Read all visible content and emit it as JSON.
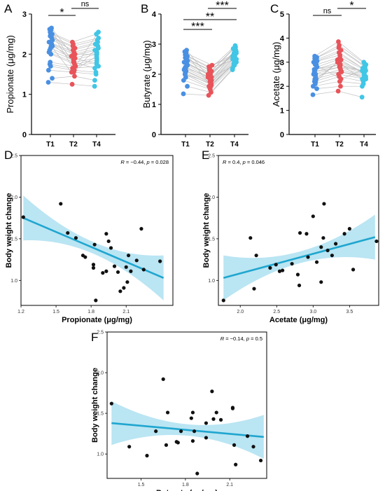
{
  "colors": {
    "t1": "#4a90e2",
    "t2": "#e8545a",
    "t4": "#41c6e6",
    "pair_line": "#b8b8b8",
    "fit_line": "#1fa6cf",
    "ci_band": "#b6e4f2",
    "point": "#111111"
  },
  "chart_data": [
    {
      "panel": "A",
      "type": "scatter",
      "ylabel": "Propionate (μg/mg)",
      "categories": [
        "T1",
        "T2",
        "T4"
      ],
      "ylim": [
        0,
        3
      ],
      "yticks": [
        "0",
        "1",
        "2",
        "3"
      ],
      "series": [
        {
          "values": [
            1.3,
            1.4,
            1.6,
            1.7,
            1.75,
            1.8,
            2.0,
            2.05,
            2.1,
            2.15,
            2.2,
            2.25,
            2.3,
            2.35,
            2.4,
            2.45,
            2.5,
            2.55,
            2.6,
            2.62,
            2.65,
            2.5,
            2.2,
            2.3
          ]
        },
        {
          "values": [
            1.25,
            1.45,
            1.55,
            1.6,
            1.65,
            1.7,
            1.75,
            1.8,
            1.85,
            1.9,
            1.95,
            2.0,
            2.05,
            2.1,
            2.15,
            2.2,
            2.25,
            2.3,
            1.7,
            1.6,
            1.9,
            2.0,
            1.55,
            1.8
          ]
        },
        {
          "values": [
            1.2,
            1.35,
            1.5,
            1.55,
            1.7,
            1.8,
            1.85,
            1.9,
            2.0,
            2.05,
            2.1,
            2.15,
            2.2,
            2.25,
            2.3,
            2.35,
            2.4,
            2.5,
            2.55,
            1.95,
            1.75,
            2.0,
            2.1,
            1.65
          ]
        }
      ],
      "comparisons": [
        {
          "from": "T1",
          "to": "T2",
          "label": "*"
        },
        {
          "from": "T2",
          "to": "T4",
          "label": "ns"
        }
      ]
    },
    {
      "panel": "B",
      "type": "scatter",
      "ylabel": "Butyrate (μg/mg)",
      "categories": [
        "T1",
        "T2",
        "T4"
      ],
      "ylim": [
        0,
        4
      ],
      "yticks": [
        "0",
        "1",
        "2",
        "3",
        "4"
      ],
      "series": [
        {
          "values": [
            1.35,
            1.6,
            1.8,
            1.9,
            2.0,
            2.05,
            2.1,
            2.15,
            2.2,
            2.25,
            2.3,
            2.35,
            2.4,
            2.45,
            2.5,
            2.55,
            2.6,
            2.65,
            2.7,
            2.75,
            2.8,
            2.2,
            2.4,
            2.0
          ]
        },
        {
          "values": [
            1.3,
            1.4,
            1.5,
            1.55,
            1.6,
            1.65,
            1.7,
            1.75,
            1.8,
            1.85,
            1.9,
            1.95,
            2.0,
            2.05,
            2.1,
            2.15,
            2.2,
            2.25,
            2.3,
            1.6,
            1.8,
            1.9,
            2.0,
            1.7
          ]
        },
        {
          "values": [
            2.15,
            2.2,
            2.3,
            2.35,
            2.4,
            2.45,
            2.5,
            2.55,
            2.6,
            2.65,
            2.7,
            2.75,
            2.8,
            2.85,
            2.9,
            2.95,
            2.5,
            2.6,
            2.7,
            2.4,
            2.8,
            2.3,
            2.6,
            2.5
          ]
        }
      ],
      "comparisons": [
        {
          "from": "T1",
          "to": "T2",
          "label": "***"
        },
        {
          "from": "T1",
          "to": "T4",
          "label": "**"
        },
        {
          "from": "T2",
          "to": "T4",
          "label": "***"
        }
      ]
    },
    {
      "panel": "C",
      "type": "scatter",
      "ylabel": "Acetate (μg/mg)",
      "categories": [
        "T1",
        "T2",
        "T4"
      ],
      "ylim": [
        0,
        5
      ],
      "yticks": [
        "0",
        "1",
        "2",
        "3",
        "4",
        "5"
      ],
      "series": [
        {
          "values": [
            1.65,
            1.9,
            2.0,
            2.1,
            2.2,
            2.3,
            2.4,
            2.5,
            2.6,
            2.7,
            2.8,
            2.9,
            3.0,
            3.05,
            3.1,
            3.15,
            3.2,
            3.25,
            2.5,
            2.7,
            2.3,
            2.9,
            2.2,
            2.6
          ]
        },
        {
          "values": [
            1.8,
            2.0,
            2.2,
            2.4,
            2.5,
            2.6,
            2.7,
            2.8,
            2.9,
            3.0,
            3.1,
            3.2,
            3.3,
            3.4,
            3.5,
            3.6,
            3.7,
            3.85,
            2.6,
            2.9,
            3.1,
            2.3,
            3.0,
            2.8
          ]
        },
        {
          "values": [
            1.55,
            2.0,
            2.1,
            2.2,
            2.3,
            2.35,
            2.4,
            2.45,
            2.5,
            2.55,
            2.6,
            2.65,
            2.7,
            2.75,
            2.8,
            2.85,
            2.9,
            3.0,
            2.4,
            2.6,
            2.5,
            2.7,
            2.3,
            2.65
          ]
        }
      ],
      "comparisons": [
        {
          "from": "T1",
          "to": "T2",
          "label": "ns"
        },
        {
          "from": "T2",
          "to": "T4",
          "label": "*"
        }
      ]
    },
    {
      "panel": "D",
      "type": "scatter",
      "xlabel": "Propionate (μg/mg)",
      "ylabel": "Body weight change",
      "stat_r": "−0.44",
      "stat_p": "0.028",
      "xlim": [
        1.2,
        2.5
      ],
      "ylim": [
        0.7,
        2.5
      ],
      "xticks": [
        "1.2",
        "1.5",
        "1.8",
        "2.1"
      ],
      "yticks": [
        "1.0",
        "1.5",
        "2.0",
        "2.5"
      ],
      "fit": {
        "start": [
          1.22,
          1.75
        ],
        "end": [
          2.42,
          1.03
        ]
      },
      "points": [
        [
          1.22,
          1.76
        ],
        [
          1.54,
          1.92
        ],
        [
          1.6,
          1.57
        ],
        [
          1.67,
          1.51
        ],
        [
          1.73,
          1.3
        ],
        [
          1.75,
          1.28
        ],
        [
          1.82,
          1.19
        ],
        [
          1.82,
          1.15
        ],
        [
          1.83,
          1.43
        ],
        [
          1.84,
          0.76
        ],
        [
          1.9,
          1.09
        ],
        [
          1.93,
          1.56
        ],
        [
          1.93,
          1.11
        ],
        [
          1.95,
          1.47
        ],
        [
          1.97,
          1.39
        ],
        [
          2.0,
          1.17
        ],
        [
          2.03,
          1.1
        ],
        [
          2.05,
          0.87
        ],
        [
          2.08,
          0.91
        ],
        [
          2.1,
          1.16
        ],
        [
          2.11,
          0.98
        ],
        [
          2.12,
          1.3
        ],
        [
          2.14,
          1.11
        ],
        [
          2.19,
          1.24
        ],
        [
          2.23,
          1.62
        ],
        [
          2.25,
          1.13
        ],
        [
          2.39,
          1.23
        ]
      ]
    },
    {
      "panel": "E",
      "type": "scatter",
      "xlabel": "Acetate (μg/mg)",
      "ylabel": "Body weight change",
      "stat_r": "0.4",
      "stat_p": "0.046",
      "xlim": [
        1.7,
        3.9
      ],
      "ylim": [
        0.7,
        2.5
      ],
      "xticks": [
        "2.0",
        "2.5",
        "3.0",
        "3.5"
      ],
      "yticks": [
        "1.0",
        "1.5",
        "2.0",
        "2.5"
      ],
      "fit": {
        "start": [
          1.77,
          1.03
        ],
        "end": [
          3.85,
          1.52
        ]
      },
      "points": [
        [
          1.77,
          0.76
        ],
        [
          2.14,
          1.51
        ],
        [
          2.19,
          0.9
        ],
        [
          2.22,
          1.3
        ],
        [
          2.41,
          1.15
        ],
        [
          2.49,
          1.19
        ],
        [
          2.54,
          1.11
        ],
        [
          2.58,
          1.12
        ],
        [
          2.71,
          1.2
        ],
        [
          2.79,
          1.07
        ],
        [
          2.81,
          0.94
        ],
        [
          2.82,
          1.57
        ],
        [
          2.91,
          1.56
        ],
        [
          2.93,
          1.28
        ],
        [
          3.0,
          1.77
        ],
        [
          3.05,
          1.22
        ],
        [
          3.11,
          1.4
        ],
        [
          3.11,
          0.98
        ],
        [
          3.14,
          1.51
        ],
        [
          3.15,
          1.92
        ],
        [
          3.2,
          1.36
        ],
        [
          3.26,
          1.3
        ],
        [
          3.31,
          1.44
        ],
        [
          3.43,
          1.56
        ],
        [
          3.5,
          1.62
        ],
        [
          3.55,
          1.13
        ],
        [
          3.87,
          1.47
        ]
      ]
    },
    {
      "panel": "F",
      "type": "scatter",
      "xlabel": "Butyrate (μg/mg)",
      "ylabel": "Body weight change",
      "stat_r": "−0.14",
      "stat_p": "0.5",
      "xlim": [
        1.27,
        2.35
      ],
      "ylim": [
        0.7,
        2.5
      ],
      "xticks": [
        "1.5",
        "1.8",
        "2.1"
      ],
      "yticks": [
        "1.0",
        "1.5",
        "2.0",
        "2.5"
      ],
      "fit": {
        "start": [
          1.3,
          1.38
        ],
        "end": [
          2.33,
          1.21
        ]
      },
      "points": [
        [
          1.3,
          1.62
        ],
        [
          1.42,
          1.09
        ],
        [
          1.54,
          0.98
        ],
        [
          1.6,
          1.28
        ],
        [
          1.65,
          1.92
        ],
        [
          1.67,
          1.11
        ],
        [
          1.68,
          1.51
        ],
        [
          1.74,
          1.15
        ],
        [
          1.75,
          1.14
        ],
        [
          1.77,
          1.28
        ],
        [
          1.84,
          1.44
        ],
        [
          1.85,
          1.51
        ],
        [
          1.85,
          1.16
        ],
        [
          1.86,
          1.28
        ],
        [
          1.88,
          0.76
        ],
        [
          1.94,
          1.38
        ],
        [
          1.94,
          1.2
        ],
        [
          1.98,
          1.77
        ],
        [
          1.99,
          1.43
        ],
        [
          2.01,
          1.51
        ],
        [
          2.04,
          1.42
        ],
        [
          2.12,
          1.57
        ],
        [
          2.12,
          1.56
        ],
        [
          2.13,
          1.11
        ],
        [
          2.14,
          0.87
        ],
        [
          2.22,
          1.22
        ],
        [
          2.26,
          1.09
        ],
        [
          2.31,
          0.92
        ]
      ]
    }
  ]
}
